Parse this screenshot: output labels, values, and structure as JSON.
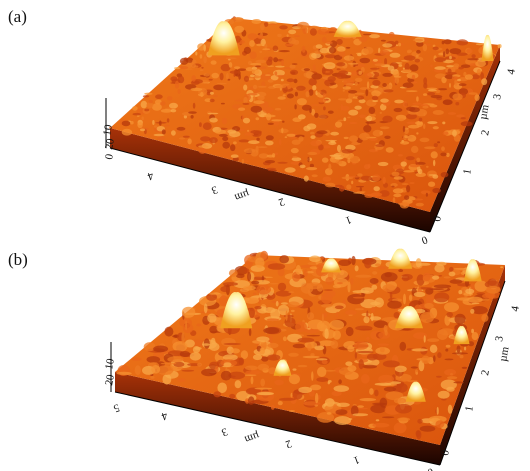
{
  "panels": [
    {
      "label": "(a)",
      "front_axis": [
        "4",
        "3",
        "µm",
        "2",
        "1",
        "0"
      ],
      "right_axis": [
        "0",
        "1",
        "2",
        "µm",
        "3",
        "4"
      ],
      "height_axis": [
        "10",
        "20",
        "0"
      ]
    },
    {
      "label": "(b)",
      "front_axis": [
        "5",
        "4",
        "3",
        "µm",
        "2",
        "1",
        "0"
      ],
      "right_axis": [
        "0",
        "1",
        "2",
        "3",
        "µm",
        "4"
      ],
      "height_axis": [
        "10",
        "20"
      ]
    }
  ]
}
